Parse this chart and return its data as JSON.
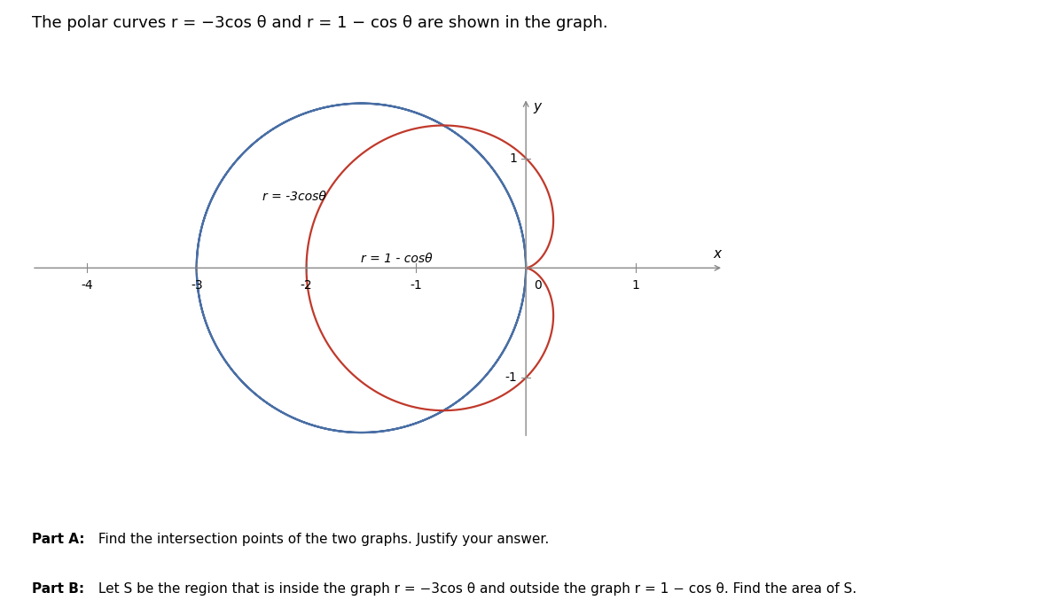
{
  "title_text": "The polar curves r = −3cos θ and r = 1 − cos θ are shown in the graph.",
  "curve1_label": "r = -3cosθ",
  "curve2_label": "r = 1 - cosθ",
  "curve1_color": "#4a6fa5",
  "curve2_color": "#c0392b",
  "background_color": "#ffffff",
  "xlim": [
    -4.5,
    1.8
  ],
  "ylim": [
    -1.55,
    1.55
  ],
  "x_ticks": [
    -4,
    -3,
    -2,
    -1,
    0,
    1
  ],
  "y_ticks": [
    -1,
    1
  ],
  "part_a_bold": "Part A:",
  "part_a_rest": " Find the intersection points of the two graphs. Justify your answer.",
  "part_b_bold": "Part B:",
  "part_b_rest": " Let S be the region that is inside the graph r = −3cos θ and outside the graph r = 1 − cos θ. Find the area of S.",
  "axis_color": "#888888",
  "tick_fontsize": 10,
  "label_fontsize": 11,
  "title_fontsize": 13,
  "curve_label_fontsize": 10
}
